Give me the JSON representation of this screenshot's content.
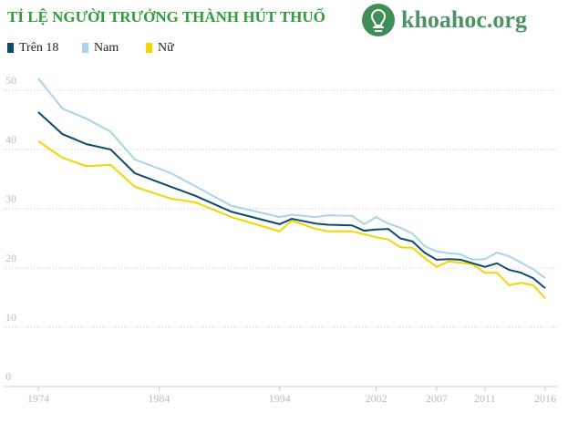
{
  "chart_data": {
    "type": "line",
    "title": "TỈ LỆ NGƯỜI TRƯỞNG THÀNH HÚT THUỐ",
    "watermark": "khoahoc.org",
    "x": [
      1974,
      1976,
      1978,
      1980,
      1982,
      1985,
      1987,
      1990,
      1994,
      1995,
      1997,
      1998,
      2000,
      2001,
      2002,
      2003,
      2004,
      2005,
      2006,
      2007,
      2008,
      2009,
      2010,
      2011,
      2012,
      2013,
      2014,
      2015,
      2016
    ],
    "series": [
      {
        "name": "Trên 18",
        "color": "#0d4a6e",
        "values": [
          46.3,
          42.6,
          40.9,
          40,
          36,
          33.7,
          32.2,
          29.5,
          27.4,
          28.3,
          27.5,
          27.3,
          27.2,
          26.3,
          26.5,
          26.6,
          25,
          24.5,
          22.6,
          21.4,
          21.5,
          21.4,
          20.8,
          20.2,
          20.8,
          19.7,
          19.2,
          18.3,
          16.6
        ]
      },
      {
        "name": "Nam",
        "color": "#a8d4ea",
        "values": [
          52,
          46.9,
          45.2,
          43,
          38.3,
          36,
          33.8,
          30.5,
          28.6,
          29,
          28.6,
          28.9,
          28.8,
          27.4,
          28.6,
          27.5,
          26.8,
          25.8,
          23.7,
          22.8,
          22.5,
          22.3,
          21.4,
          21.5,
          22.6,
          22,
          20.9,
          19.8,
          18.3
        ]
      },
      {
        "name": "Nữ",
        "color": "#f2d600",
        "values": [
          41.4,
          38.6,
          37.2,
          37.4,
          33.7,
          31.7,
          31.1,
          28.6,
          26.2,
          28,
          26.6,
          26.2,
          26.2,
          25.7,
          25.2,
          24.8,
          23.5,
          23.4,
          21.7,
          20.2,
          21.1,
          20.9,
          20.6,
          19.2,
          19.2,
          17.1,
          17.5,
          17.1,
          14.9
        ]
      }
    ],
    "xlim": [
      1974,
      2016
    ],
    "xticks": [
      1974,
      1984,
      1994,
      2002,
      2007,
      2011,
      2016
    ],
    "ylim": [
      0,
      50
    ],
    "yticks": [
      0,
      10,
      20,
      30,
      40,
      50
    ],
    "grid": true
  }
}
